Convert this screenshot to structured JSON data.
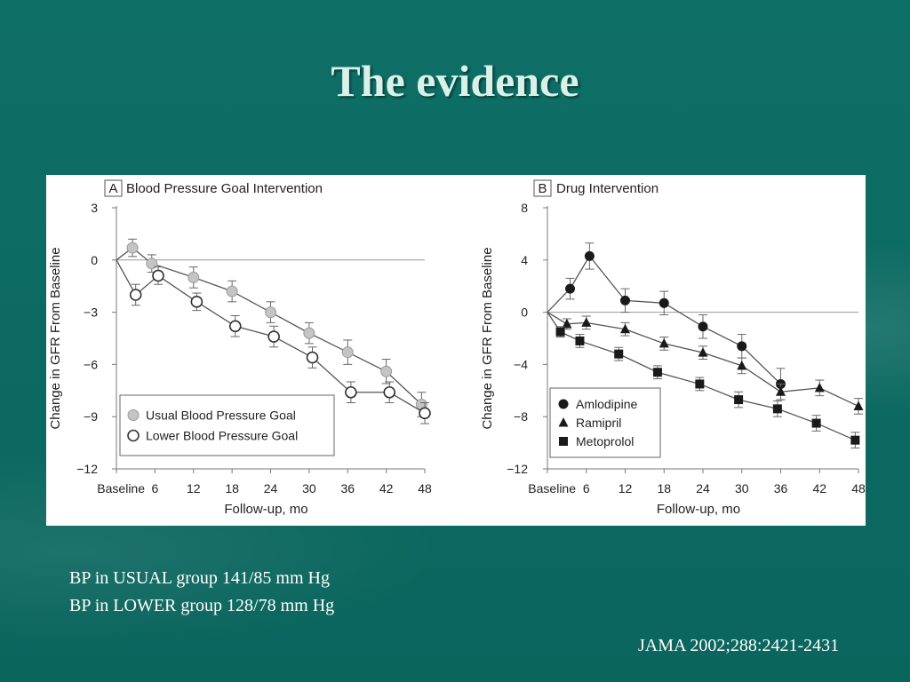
{
  "slide": {
    "title": "The evidence",
    "notes": [
      "BP in USUAL group 141/85 mm Hg",
      "BP in LOWER group 128/78 mm Hg"
    ],
    "citation": "JAMA 2002;288:2421-2431"
  },
  "chart_data": [
    {
      "type": "line",
      "panel_letter": "A",
      "title": "Blood Pressure Goal Intervention",
      "xlabel": "Follow-up, mo",
      "ylabel": "Change in GFR From Baseline",
      "x_ticks": [
        "Baseline",
        "6",
        "12",
        "18",
        "24",
        "30",
        "36",
        "42",
        "48"
      ],
      "x_tick_values": [
        0,
        6,
        12,
        18,
        24,
        30,
        36,
        42,
        48
      ],
      "y_ticks": [
        3,
        0,
        -3,
        -6,
        -9,
        -12
      ],
      "ylim": [
        -12,
        3
      ],
      "xlim": [
        0,
        48
      ],
      "legend_position": "bottom-left",
      "series": [
        {
          "name": "Usual Blood Pressure Goal",
          "marker": "circle-gray",
          "x": [
            0,
            2.5,
            5.5,
            12,
            18,
            24,
            30,
            36,
            42,
            47.5
          ],
          "y": [
            0,
            0.7,
            -0.2,
            -1.0,
            -1.8,
            -3.0,
            -4.2,
            -5.3,
            -6.4,
            -8.3
          ],
          "err": [
            0,
            0.5,
            0.5,
            0.6,
            0.6,
            0.6,
            0.6,
            0.7,
            0.7,
            0.7
          ]
        },
        {
          "name": "Lower Blood Pressure Goal",
          "marker": "circle-open",
          "x": [
            0,
            3,
            6.5,
            12.5,
            18.5,
            24.5,
            30.5,
            36.5,
            42.5,
            48
          ],
          "y": [
            0,
            -2.0,
            -0.9,
            -2.4,
            -3.8,
            -4.4,
            -5.6,
            -7.6,
            -7.6,
            -8.8
          ],
          "err": [
            0,
            0.6,
            0.5,
            0.5,
            0.6,
            0.6,
            0.6,
            0.6,
            0.6,
            0.6
          ]
        }
      ]
    },
    {
      "type": "line",
      "panel_letter": "B",
      "title": "Drug Intervention",
      "xlabel": "Follow-up, mo",
      "ylabel": "Change in GFR From Baseline",
      "x_ticks": [
        "Baseline",
        "6",
        "12",
        "18",
        "24",
        "30",
        "36",
        "42",
        "48"
      ],
      "x_tick_values": [
        0,
        6,
        12,
        18,
        24,
        30,
        36,
        42,
        48
      ],
      "y_ticks": [
        8,
        4,
        0,
        -4,
        -8,
        -12
      ],
      "ylim": [
        -12,
        8
      ],
      "xlim": [
        0,
        48
      ],
      "legend_position": "bottom-left",
      "series": [
        {
          "name": "Amlodipine",
          "marker": "circle-filled",
          "x": [
            0,
            3.5,
            6.5,
            12,
            18,
            24,
            30,
            36
          ],
          "y": [
            0,
            1.8,
            4.3,
            0.9,
            0.7,
            -1.1,
            -2.6,
            -5.5
          ],
          "err": [
            0,
            0.8,
            1.0,
            0.9,
            0.9,
            0.9,
            0.9,
            1.2
          ]
        },
        {
          "name": "Ramipril",
          "marker": "triangle",
          "x": [
            0,
            3,
            6,
            12,
            18,
            24,
            30,
            36,
            42,
            48
          ],
          "y": [
            0,
            -0.9,
            -0.8,
            -1.3,
            -2.4,
            -3.1,
            -4.1,
            -6.1,
            -5.8,
            -7.2
          ],
          "err": [
            0,
            0.4,
            0.5,
            0.5,
            0.5,
            0.5,
            0.6,
            0.6,
            0.6,
            0.6
          ]
        },
        {
          "name": "Metoprolol",
          "marker": "square",
          "x": [
            0,
            2,
            5,
            11,
            17,
            23.5,
            29.5,
            35.5,
            41.5,
            47.5
          ],
          "y": [
            0,
            -1.5,
            -2.2,
            -3.2,
            -4.6,
            -5.5,
            -6.7,
            -7.4,
            -8.5,
            -9.8
          ],
          "err": [
            0,
            0.4,
            0.5,
            0.5,
            0.5,
            0.5,
            0.6,
            0.6,
            0.6,
            0.6
          ]
        }
      ]
    }
  ]
}
